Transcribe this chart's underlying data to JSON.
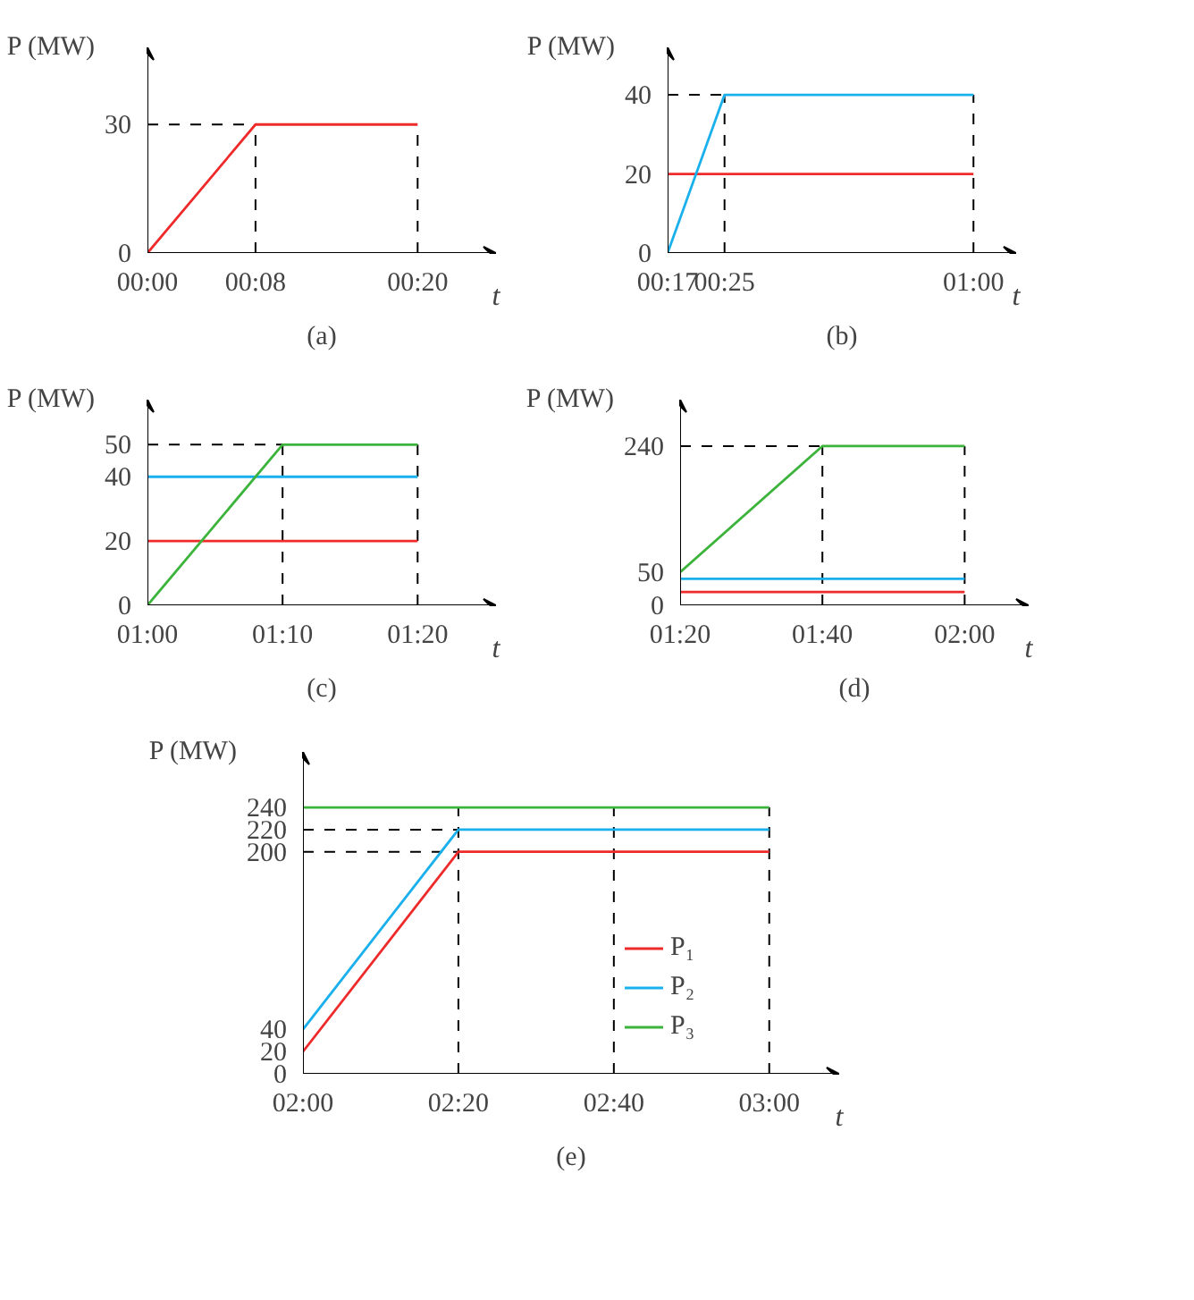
{
  "chart_data": [
    {
      "type": "line",
      "title": "(a)",
      "xlabel": "t",
      "ylabel": "P (MW)",
      "xlim": [
        0,
        0.43
      ],
      "ylim": [
        0,
        48
      ],
      "xticks": [
        {
          "value": 0,
          "label": "00:00"
        },
        {
          "value": 0.1333,
          "label": "00:08"
        },
        {
          "value": 0.3333,
          "label": "00:20"
        }
      ],
      "yticks": [
        0,
        30
      ],
      "series": [
        {
          "color": "#ee2a2a",
          "x": [
            0,
            0.1333,
            0.3333
          ],
          "values": [
            0,
            30,
            30
          ]
        }
      ],
      "ref_lines": [
        {
          "axis": "x",
          "value": 0.1333,
          "line_style": "dashed"
        },
        {
          "axis": "x",
          "value": 0.3333,
          "line_style": "dashed"
        },
        {
          "axis": "y",
          "value": 30,
          "line_style": "dashed"
        }
      ]
    },
    {
      "type": "line",
      "title": "(b)",
      "xlabel": "t",
      "ylabel": "P (MW)",
      "xlim": [
        0.2833,
        1.1
      ],
      "ylim": [
        0,
        52
      ],
      "xticks": [
        {
          "value": 0.2833,
          "label": "00:17"
        },
        {
          "value": 0.4167,
          "label": "00:25"
        },
        {
          "value": 1.0,
          "label": "01:00"
        }
      ],
      "yticks": [
        0,
        20,
        40
      ],
      "series": [
        {
          "color": "#ee2a2a",
          "x": [
            0.2833,
            1.0
          ],
          "values": [
            20,
            20
          ]
        },
        {
          "color": "#1ab0ec",
          "x": [
            0.2833,
            0.4167,
            1.0
          ],
          "values": [
            0,
            40,
            40
          ]
        }
      ],
      "ref_lines": [
        {
          "axis": "x",
          "value": 0.4167,
          "line_style": "dashed"
        },
        {
          "axis": "x",
          "value": 1.0,
          "line_style": "dashed"
        },
        {
          "axis": "y",
          "value": 40,
          "line_style": "dashed"
        }
      ]
    },
    {
      "type": "line",
      "title": "(c)",
      "xlabel": "t",
      "ylabel": "P (MW)",
      "xlim": [
        1.0,
        1.43
      ],
      "ylim": [
        0,
        64
      ],
      "xticks": [
        {
          "value": 1.0,
          "label": "01:00"
        },
        {
          "value": 1.1667,
          "label": "01:10"
        },
        {
          "value": 1.3333,
          "label": "01:20"
        }
      ],
      "yticks": [
        0,
        20,
        40,
        50
      ],
      "series": [
        {
          "color": "#ee2a2a",
          "x": [
            1.0,
            1.3333
          ],
          "values": [
            20,
            20
          ]
        },
        {
          "color": "#1ab0ec",
          "x": [
            1.0,
            1.3333
          ],
          "values": [
            40,
            40
          ]
        },
        {
          "color": "#3cb43c",
          "x": [
            1.0,
            1.1667,
            1.3333
          ],
          "values": [
            0,
            50,
            50
          ]
        }
      ],
      "ref_lines": [
        {
          "axis": "x",
          "value": 1.1667,
          "line_style": "dashed"
        },
        {
          "axis": "x",
          "value": 1.3333,
          "line_style": "dashed"
        },
        {
          "axis": "y",
          "value": 50,
          "line_style": "dashed"
        }
      ]
    },
    {
      "type": "line",
      "title": "(d)",
      "xlabel": "t",
      "ylabel": "P (MW)",
      "xlim": [
        1.3333,
        2.15
      ],
      "ylim": [
        0,
        310
      ],
      "xticks": [
        {
          "value": 1.3333,
          "label": "01:20"
        },
        {
          "value": 1.6667,
          "label": "01:40"
        },
        {
          "value": 2.0,
          "label": "02:00"
        }
      ],
      "yticks": [
        0,
        50,
        240
      ],
      "series": [
        {
          "color": "#ee2a2a",
          "x": [
            1.3333,
            2.0
          ],
          "values": [
            20,
            20
          ]
        },
        {
          "color": "#1ab0ec",
          "x": [
            1.3333,
            2.0
          ],
          "values": [
            40,
            40
          ]
        },
        {
          "color": "#3cb43c",
          "x": [
            1.3333,
            1.6667,
            2.0
          ],
          "values": [
            50,
            240,
            240
          ]
        }
      ],
      "ref_lines": [
        {
          "axis": "x",
          "value": 1.6667,
          "line_style": "dashed"
        },
        {
          "axis": "x",
          "value": 2.0,
          "line_style": "dashed"
        },
        {
          "axis": "y",
          "value": 240,
          "line_style": "dashed"
        }
      ]
    },
    {
      "type": "line",
      "title": "(e)",
      "xlabel": "t",
      "ylabel": "P (MW)",
      "xlim": [
        2.0,
        3.15
      ],
      "ylim": [
        0,
        290
      ],
      "legend": "bottom right",
      "xticks": [
        {
          "value": 2.0,
          "label": "02:00"
        },
        {
          "value": 2.3333,
          "label": "02:20"
        },
        {
          "value": 2.6667,
          "label": "02:40"
        },
        {
          "value": 3.0,
          "label": "03:00"
        }
      ],
      "yticks": [
        0,
        20,
        40,
        200,
        220,
        240
      ],
      "series": [
        {
          "name": "P₁",
          "color": "#ee2a2a",
          "x": [
            2.0,
            2.3333,
            3.0
          ],
          "values": [
            20,
            200,
            200
          ]
        },
        {
          "name": "P₂",
          "color": "#1ab0ec",
          "x": [
            2.0,
            2.3333,
            3.0
          ],
          "values": [
            40,
            220,
            220
          ]
        },
        {
          "name": "P₃",
          "color": "#3cb43c",
          "x": [
            2.0,
            3.0
          ],
          "values": [
            240,
            240
          ]
        }
      ],
      "ref_lines": [
        {
          "axis": "x",
          "value": 2.3333,
          "line_style": "dashed"
        },
        {
          "axis": "x",
          "value": 2.6667,
          "line_style": "dashed"
        },
        {
          "axis": "x",
          "value": 3.0,
          "line_style": "dashed"
        },
        {
          "axis": "y",
          "value": 220,
          "line_style": "dashed"
        },
        {
          "axis": "y",
          "value": 200,
          "line_style": "dashed"
        }
      ]
    }
  ]
}
